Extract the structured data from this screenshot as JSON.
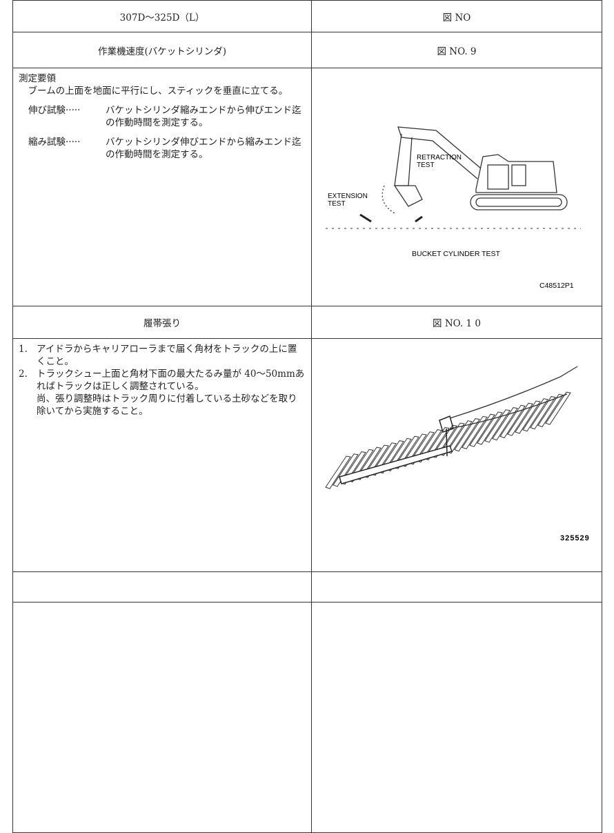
{
  "header": {
    "model": "307D～325D（L）",
    "fig": "図 NO"
  },
  "sections": [
    {
      "title": "作業機速度(バケットシリンダ)",
      "fig_no": "図 NO. 9",
      "heading": "測定要領",
      "intro": "ブームの上面を地面に平行にし、スティックを垂直に立てる。",
      "items": [
        {
          "label": "伸び試験·····",
          "text": "バケットシリンダ縮みエンドから伸びエンド迄の作動時間を測定する。"
        },
        {
          "label": "縮み試験·····",
          "text": "バケットシリンダ伸びエンドから縮みエンド迄の作動時間を測定する。"
        }
      ],
      "figure": {
        "retraction": [
          "RETRACTION",
          "TEST"
        ],
        "extension": [
          "EXTENSION",
          "TEST"
        ],
        "caption": "BUCKET CYLINDER TEST",
        "code": "C48512P1"
      }
    },
    {
      "title": "履帯張り",
      "fig_no": "図 NO. 1 0",
      "steps": [
        {
          "num": "1.",
          "text": "アイドラからキャリアローラまで届く角材をトラックの上に置くこと。"
        },
        {
          "num": "2.",
          "text": "トラックシュー上面と角材下面の最大たるみ量が 40～50mmあればトラックは正しく調整されている。",
          "note": "尚、張り調整時はトラック周りに付着している土砂などを取り除いてから実施すること。"
        }
      ],
      "figure": {
        "code": "325529"
      }
    }
  ]
}
